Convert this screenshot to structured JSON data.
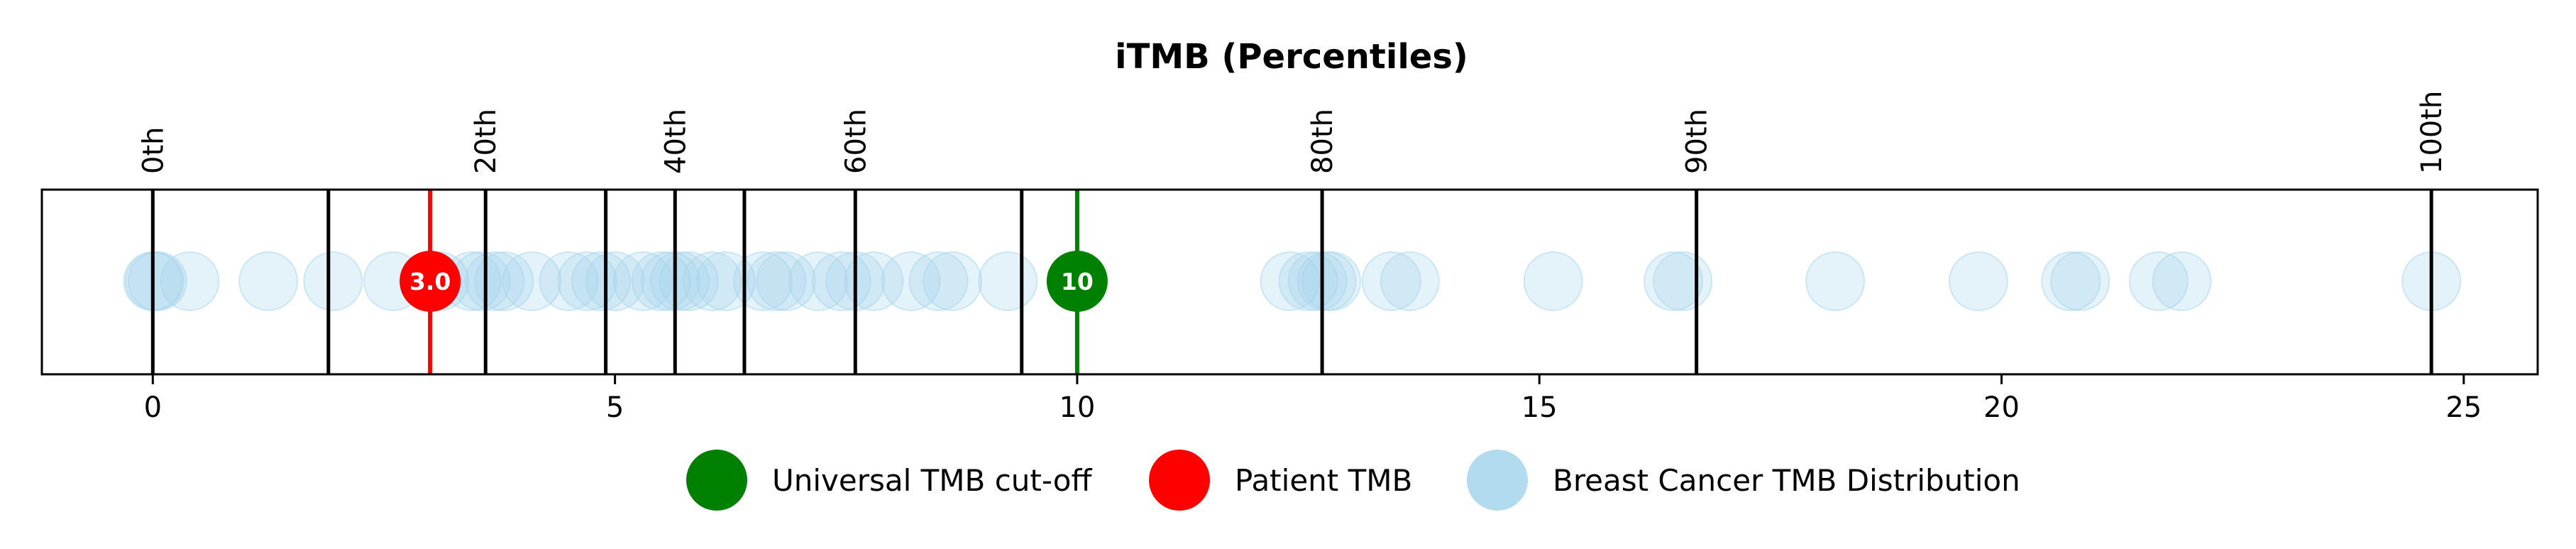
{
  "chart_data": {
    "type": "scatter",
    "title": "iTMB (Percentiles)",
    "xlabel": "",
    "ylabel": "",
    "xlim": [
      -1.2,
      25.8
    ],
    "x_ticks": [
      0,
      5,
      10,
      15,
      20,
      25
    ],
    "percentile_lines": [
      {
        "x": 0.0,
        "label": "0th"
      },
      {
        "x": 1.9,
        "label": ""
      },
      {
        "x": 3.6,
        "label": "20th"
      },
      {
        "x": 4.9,
        "label": ""
      },
      {
        "x": 5.65,
        "label": "40th"
      },
      {
        "x": 6.4,
        "label": ""
      },
      {
        "x": 7.6,
        "label": "60th"
      },
      {
        "x": 9.4,
        "label": ""
      },
      {
        "x": 12.65,
        "label": "80th"
      },
      {
        "x": 16.7,
        "label": "90th"
      },
      {
        "x": 24.65,
        "label": "100th"
      }
    ],
    "cutoff": {
      "x": 10,
      "label": "10",
      "color": "#008000"
    },
    "patient": {
      "x": 3.0,
      "label": "3.0",
      "color": "#ff0000"
    },
    "distribution": {
      "color": "#a6d5ec",
      "values": [
        0.0,
        0.02,
        0.05,
        0.4,
        1.25,
        1.95,
        2.6,
        3.1,
        3.45,
        3.55,
        3.7,
        3.8,
        4.1,
        4.5,
        4.7,
        4.85,
        5.0,
        5.3,
        5.5,
        5.6,
        5.7,
        5.8,
        6.05,
        6.2,
        6.6,
        6.75,
        6.85,
        7.2,
        7.45,
        7.6,
        7.8,
        8.2,
        8.5,
        8.65,
        9.25,
        12.3,
        12.5,
        12.6,
        12.7,
        12.75,
        13.4,
        13.6,
        15.15,
        16.45,
        16.55,
        18.2,
        19.75,
        20.75,
        20.85,
        21.7,
        21.95,
        24.65
      ]
    },
    "legend": {
      "position": "bottom-center",
      "items": [
        {
          "label": "Universal TMB cut-off",
          "color": "#008000"
        },
        {
          "label": "Patient TMB",
          "color": "#ff0000"
        },
        {
          "label": "Breast Cancer TMB Distribution",
          "color": "#a6d5ec"
        }
      ]
    }
  }
}
